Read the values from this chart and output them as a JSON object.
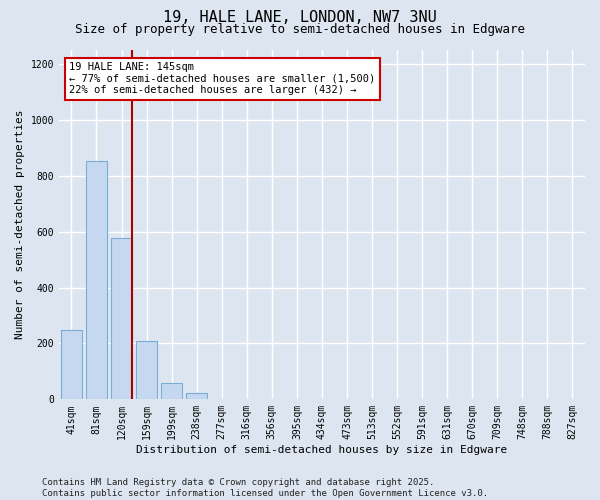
{
  "title_line1": "19, HALE LANE, LONDON, NW7 3NU",
  "title_line2": "Size of property relative to semi-detached houses in Edgware",
  "xlabel": "Distribution of semi-detached houses by size in Edgware",
  "ylabel": "Number of semi-detached properties",
  "categories": [
    "41sqm",
    "81sqm",
    "120sqm",
    "159sqm",
    "199sqm",
    "238sqm",
    "277sqm",
    "316sqm",
    "356sqm",
    "395sqm",
    "434sqm",
    "473sqm",
    "513sqm",
    "552sqm",
    "591sqm",
    "631sqm",
    "670sqm",
    "709sqm",
    "748sqm",
    "788sqm",
    "827sqm"
  ],
  "values": [
    248,
    852,
    578,
    210,
    60,
    24,
    2,
    0,
    0,
    0,
    0,
    0,
    0,
    0,
    0,
    0,
    0,
    0,
    0,
    0,
    0
  ],
  "bar_color": "#c5d8f0",
  "bar_edgecolor": "#7aadd4",
  "marker_color": "#aa0000",
  "annotation_text": "19 HALE LANE: 145sqm\n← 77% of semi-detached houses are smaller (1,500)\n22% of semi-detached houses are larger (432) →",
  "annotation_box_facecolor": "#ffffff",
  "annotation_box_edgecolor": "#cc0000",
  "ylim": [
    0,
    1250
  ],
  "yticks": [
    0,
    200,
    400,
    600,
    800,
    1000,
    1200
  ],
  "footer_line1": "Contains HM Land Registry data © Crown copyright and database right 2025.",
  "footer_line2": "Contains public sector information licensed under the Open Government Licence v3.0.",
  "bg_color": "#dde6f0",
  "plot_bg_color": "#dde6f0",
  "grid_color": "#ffffff",
  "title_fontsize": 11,
  "subtitle_fontsize": 9,
  "axis_label_fontsize": 8,
  "tick_fontsize": 7,
  "annotation_fontsize": 7.5,
  "footer_fontsize": 6.5
}
